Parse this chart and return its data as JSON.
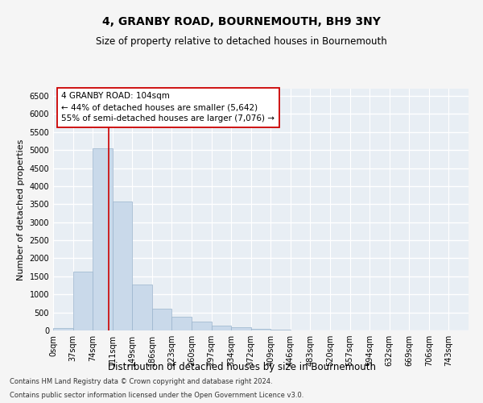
{
  "title": "4, GRANBY ROAD, BOURNEMOUTH, BH9 3NY",
  "subtitle": "Size of property relative to detached houses in Bournemouth",
  "xlabel": "Distribution of detached houses by size in Bournemouth",
  "ylabel": "Number of detached properties",
  "footer_line1": "Contains HM Land Registry data © Crown copyright and database right 2024.",
  "footer_line2": "Contains public sector information licensed under the Open Government Licence v3.0.",
  "bin_labels": [
    "0sqm",
    "37sqm",
    "74sqm",
    "111sqm",
    "149sqm",
    "186sqm",
    "223sqm",
    "260sqm",
    "297sqm",
    "334sqm",
    "372sqm",
    "409sqm",
    "446sqm",
    "483sqm",
    "520sqm",
    "557sqm",
    "594sqm",
    "632sqm",
    "669sqm",
    "706sqm",
    "743sqm"
  ],
  "bar_values": [
    60,
    1620,
    5050,
    3580,
    1270,
    600,
    390,
    240,
    130,
    85,
    55,
    20,
    8,
    4,
    2,
    1,
    1,
    0,
    0,
    0
  ],
  "bar_color": "#c9d9ea",
  "bar_edge_color": "#9ab4cc",
  "ylim": [
    0,
    6700
  ],
  "yticks": [
    0,
    500,
    1000,
    1500,
    2000,
    2500,
    3000,
    3500,
    4000,
    4500,
    5000,
    5500,
    6000,
    6500
  ],
  "property_size": 104,
  "bin_width": 37,
  "vline_color": "#cc0000",
  "annotation_text_line1": "4 GRANBY ROAD: 104sqm",
  "annotation_text_line2": "← 44% of detached houses are smaller (5,642)",
  "annotation_text_line3": "55% of semi-detached houses are larger (7,076) →",
  "annotation_box_facecolor": "#ffffff",
  "annotation_box_edgecolor": "#cc0000",
  "plot_bg_color": "#e8eef4",
  "fig_bg_color": "#f5f5f5",
  "grid_color": "#ffffff",
  "title_fontsize": 10,
  "subtitle_fontsize": 8.5,
  "axis_label_fontsize": 8,
  "tick_fontsize": 7,
  "annotation_fontsize": 7.5,
  "footer_fontsize": 6
}
